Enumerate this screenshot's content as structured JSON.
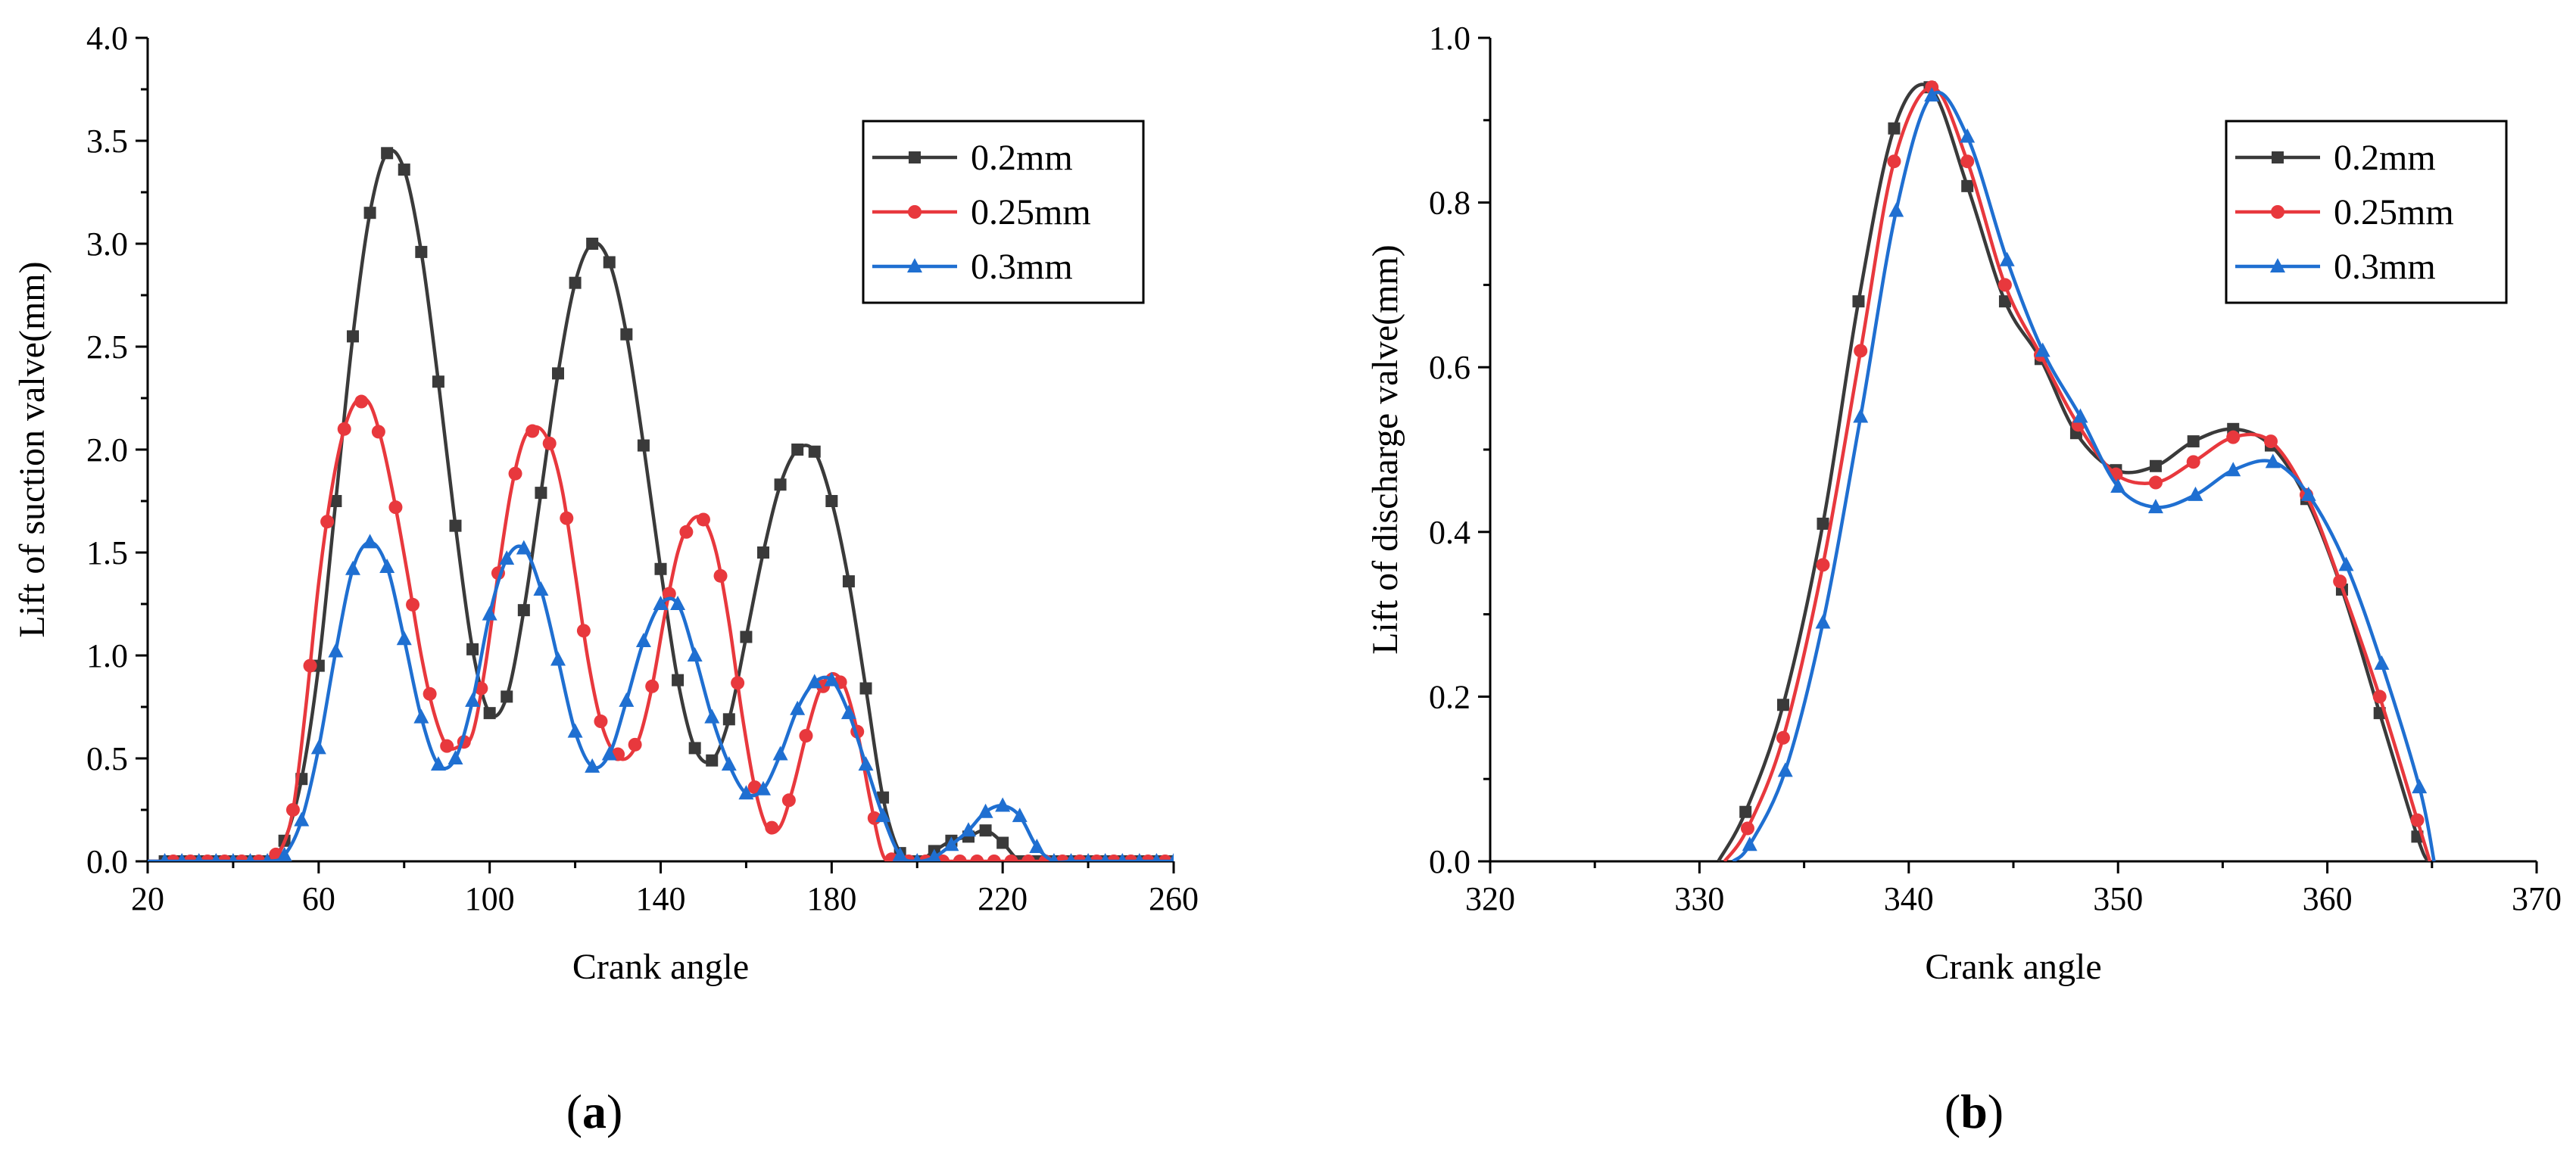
{
  "chart_data": [
    {
      "type": "line",
      "panel": "a",
      "xlabel": "Crank angle",
      "ylabel": "Lift of suction valve(mm)",
      "xlim": [
        20,
        260
      ],
      "ylim": [
        0,
        4.0
      ],
      "xticks": [
        "20",
        "60",
        "100",
        "140",
        "180",
        "220",
        "260"
      ],
      "yticks": [
        "0.0",
        "0.5",
        "1.0",
        "1.5",
        "2.0",
        "2.5",
        "3.0",
        "3.5",
        "4.0"
      ],
      "legend_position": "top-right",
      "series": [
        {
          "name": "0.2mm",
          "color": "#3a3a3a",
          "marker": "square",
          "x": [
            20,
            30,
            40,
            48,
            52,
            56,
            60,
            64,
            68,
            72,
            76,
            80,
            84,
            88,
            92,
            96,
            100,
            104,
            108,
            112,
            116,
            120,
            124,
            128,
            132,
            136,
            140,
            144,
            148,
            152,
            156,
            160,
            164,
            168,
            172,
            176,
            180,
            184,
            188,
            192,
            196,
            200,
            204,
            208,
            212,
            216,
            220,
            224,
            228,
            232,
            240,
            260
          ],
          "y": [
            0,
            0,
            0,
            0,
            0.1,
            0.4,
            0.95,
            1.75,
            2.55,
            3.15,
            3.44,
            3.36,
            2.96,
            2.33,
            1.63,
            1.03,
            0.72,
            0.8,
            1.22,
            1.79,
            2.37,
            2.81,
            3.0,
            2.91,
            2.56,
            2.02,
            1.42,
            0.88,
            0.55,
            0.49,
            0.69,
            1.09,
            1.5,
            1.83,
            2.0,
            1.99,
            1.75,
            1.36,
            0.84,
            0.31,
            0.04,
            0.0,
            0.05,
            0.1,
            0.12,
            0.15,
            0.09,
            0.0,
            0,
            0,
            0,
            0
          ],
          "markers_x": [
            24,
            28,
            32,
            36,
            40,
            44,
            48,
            52,
            56,
            60,
            64,
            68,
            72,
            76,
            80,
            84,
            88,
            92,
            96,
            100,
            104,
            108,
            112,
            116,
            120,
            124,
            128,
            132,
            136,
            140,
            144,
            148,
            152,
            156,
            160,
            164,
            168,
            172,
            176,
            180,
            184,
            188,
            192,
            196,
            200,
            204,
            208,
            212,
            216,
            220,
            224,
            228,
            232,
            236,
            240,
            244,
            248,
            252,
            256,
            260
          ]
        },
        {
          "name": "0.25mm",
          "color": "#e8383d",
          "marker": "circle",
          "x": [
            20,
            30,
            40,
            48,
            51,
            54,
            57,
            60,
            63,
            66,
            69,
            72,
            75,
            78,
            81,
            84,
            87,
            90,
            93,
            96,
            99,
            102,
            105,
            108,
            111,
            114,
            117,
            120,
            123,
            126,
            129,
            132,
            135,
            138,
            141,
            144,
            147,
            150,
            153,
            156,
            159,
            162,
            165,
            168,
            171,
            174,
            177,
            180,
            183,
            186,
            189,
            192,
            195,
            198,
            201,
            204,
            207,
            210,
            213,
            216,
            219,
            222,
            225,
            228,
            232,
            240,
            260
          ],
          "y": [
            0,
            0,
            0,
            0,
            0.05,
            0.25,
            0.75,
            1.35,
            1.8,
            2.1,
            2.24,
            2.22,
            2.02,
            1.72,
            1.37,
            1.0,
            0.72,
            0.56,
            0.56,
            0.62,
            0.95,
            1.4,
            1.8,
            2.05,
            2.11,
            2.03,
            1.8,
            1.4,
            0.98,
            0.68,
            0.53,
            0.5,
            0.6,
            0.85,
            1.2,
            1.5,
            1.65,
            1.66,
            1.5,
            1.16,
            0.72,
            0.36,
            0.16,
            0.17,
            0.36,
            0.61,
            0.82,
            0.91,
            0.85,
            0.63,
            0.3,
            0.03,
            0,
            0,
            0,
            0,
            0,
            0,
            0,
            0,
            0,
            0,
            0,
            0,
            0,
            0,
            0
          ]
        },
        {
          "name": "0.3mm",
          "color": "#1f6fd1",
          "marker": "triangle",
          "x": [
            20,
            30,
            40,
            48,
            52,
            56,
            60,
            64,
            68,
            72,
            76,
            80,
            84,
            88,
            92,
            96,
            100,
            104,
            108,
            112,
            116,
            120,
            124,
            128,
            132,
            136,
            140,
            144,
            148,
            152,
            156,
            160,
            164,
            168,
            172,
            176,
            180,
            184,
            188,
            192,
            196,
            200,
            204,
            208,
            212,
            216,
            220,
            224,
            228,
            232,
            236,
            240,
            260
          ],
          "y": [
            0,
            0,
            0,
            0,
            0.03,
            0.2,
            0.55,
            1.02,
            1.42,
            1.55,
            1.43,
            1.08,
            0.7,
            0.47,
            0.5,
            0.78,
            1.2,
            1.47,
            1.52,
            1.32,
            0.98,
            0.63,
            0.46,
            0.52,
            0.78,
            1.07,
            1.25,
            1.25,
            1.0,
            0.7,
            0.47,
            0.33,
            0.35,
            0.52,
            0.74,
            0.87,
            0.88,
            0.72,
            0.47,
            0.22,
            0.03,
            0,
            0.02,
            0.08,
            0.15,
            0.24,
            0.27,
            0.22,
            0.07,
            0,
            0,
            0,
            0
          ]
        }
      ]
    },
    {
      "type": "line",
      "panel": "b",
      "xlabel": "Crank angle",
      "ylabel": "Lift of discharge valve(mm)",
      "xlim": [
        320,
        370
      ],
      "ylim": [
        0,
        1.0
      ],
      "xticks": [
        "320",
        "330",
        "340",
        "350",
        "360",
        "370"
      ],
      "yticks": [
        "0.0",
        "0.2",
        "0.4",
        "0.6",
        "0.8",
        "1.0"
      ],
      "legend_position": "top-right",
      "series": [
        {
          "name": "0.2mm",
          "color": "#3a3a3a",
          "marker": "square",
          "x": [
            330.9,
            332.2,
            334.0,
            335.9,
            337.6,
            339.3,
            341.0,
            342.8,
            344.6,
            346.3,
            348.0,
            349.9,
            351.8,
            353.6,
            355.5,
            357.3,
            359.0,
            360.7,
            362.5,
            364.3,
            364.8
          ],
          "y": [
            0.0,
            0.06,
            0.19,
            0.41,
            0.68,
            0.89,
            0.94,
            0.82,
            0.68,
            0.61,
            0.52,
            0.475,
            0.48,
            0.51,
            0.525,
            0.505,
            0.44,
            0.33,
            0.18,
            0.03,
            0.0
          ]
        },
        {
          "name": "0.25mm",
          "color": "#e8383d",
          "marker": "circle",
          "x": [
            331.2,
            332.3,
            334.0,
            335.9,
            337.7,
            339.3,
            341.1,
            342.8,
            344.6,
            346.3,
            348.1,
            349.9,
            351.8,
            353.6,
            355.5,
            357.3,
            359.0,
            360.6,
            362.5,
            364.3,
            364.9
          ],
          "y": [
            0.0,
            0.04,
            0.15,
            0.36,
            0.62,
            0.85,
            0.94,
            0.85,
            0.7,
            0.615,
            0.53,
            0.47,
            0.46,
            0.485,
            0.515,
            0.51,
            0.445,
            0.34,
            0.2,
            0.05,
            0.0
          ]
        },
        {
          "name": "0.3mm",
          "color": "#1f6fd1",
          "marker": "triangle",
          "x": [
            331.6,
            332.4,
            334.1,
            335.9,
            337.7,
            339.4,
            341.1,
            342.8,
            344.7,
            346.4,
            348.2,
            350.0,
            351.8,
            353.7,
            355.5,
            357.4,
            359.1,
            360.9,
            362.6,
            364.4,
            365.1
          ],
          "y": [
            0.0,
            0.02,
            0.11,
            0.29,
            0.54,
            0.79,
            0.93,
            0.88,
            0.73,
            0.62,
            0.54,
            0.455,
            0.43,
            0.445,
            0.475,
            0.485,
            0.445,
            0.36,
            0.24,
            0.09,
            0.0
          ]
        }
      ]
    }
  ],
  "panel_labels": {
    "a": {
      "open": "(",
      "letter": "a",
      "close": ")"
    },
    "b": {
      "open": "(",
      "letter": "b",
      "close": ")"
    }
  }
}
